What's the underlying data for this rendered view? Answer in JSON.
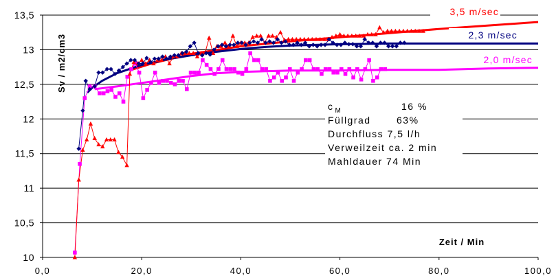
{
  "chart_data": {
    "type": "line",
    "title": "",
    "xlabel": "Zeit / Min",
    "ylabel": "Sv / m2/cm3",
    "xlim": [
      0,
      100
    ],
    "ylim": [
      10,
      13.5
    ],
    "x_ticks": [
      "0,0",
      "20,0",
      "40,0",
      "60,0",
      "80,0",
      "100,0"
    ],
    "y_ticks": [
      "10",
      "10,5",
      "11",
      "11,5",
      "12",
      "12,5",
      "13",
      "13,5"
    ],
    "grid": "horizontal",
    "series": [
      {
        "name": "3,5 m/sec",
        "color": "#ff0000",
        "marker": "triangle",
        "points": [
          [
            6.5,
            10.0
          ],
          [
            7.3,
            11.12
          ],
          [
            8.1,
            11.55
          ],
          [
            8.9,
            11.7
          ],
          [
            9.7,
            11.93
          ],
          [
            10.5,
            11.72
          ],
          [
            11.3,
            11.63
          ],
          [
            12.1,
            11.6
          ],
          [
            12.9,
            11.7
          ],
          [
            13.7,
            11.7
          ],
          [
            14.5,
            11.7
          ],
          [
            15.3,
            11.52
          ],
          [
            16.1,
            11.45
          ],
          [
            17.0,
            11.33
          ],
          [
            17.6,
            12.65
          ],
          [
            18.4,
            12.82
          ],
          [
            19.2,
            12.8
          ],
          [
            20.0,
            12.85
          ],
          [
            20.8,
            12.8
          ],
          [
            21.6,
            12.85
          ],
          [
            22.4,
            12.8
          ],
          [
            23.2,
            12.85
          ],
          [
            24.0,
            12.85
          ],
          [
            24.8,
            12.9
          ],
          [
            25.6,
            12.8
          ],
          [
            26.4,
            12.9
          ],
          [
            27.2,
            12.9
          ],
          [
            28.0,
            12.95
          ],
          [
            28.8,
            12.95
          ],
          [
            29.6,
            12.95
          ],
          [
            30.4,
            12.95
          ],
          [
            31.2,
            12.9
          ],
          [
            32.0,
            12.95
          ],
          [
            32.8,
            12.96
          ],
          [
            33.6,
            13.17
          ],
          [
            34.4,
            12.95
          ],
          [
            35.2,
            13.05
          ],
          [
            36.0,
            13.05
          ],
          [
            36.8,
            13.1
          ],
          [
            37.6,
            13.05
          ],
          [
            38.4,
            13.2
          ],
          [
            39.2,
            13.05
          ],
          [
            40.0,
            13.1
          ],
          [
            40.8,
            13.1
          ],
          [
            41.6,
            13.1
          ],
          [
            42.4,
            13.18
          ],
          [
            43.2,
            13.2
          ],
          [
            44.0,
            13.2
          ],
          [
            44.8,
            13.1
          ],
          [
            45.6,
            13.2
          ],
          [
            46.4,
            13.2
          ],
          [
            47.2,
            13.18
          ],
          [
            48.0,
            13.25
          ],
          [
            48.8,
            13.14
          ],
          [
            49.6,
            13.15
          ],
          [
            50.4,
            13.15
          ],
          [
            51.2,
            13.15
          ],
          [
            52.0,
            13.15
          ],
          [
            52.8,
            13.15
          ],
          [
            53.6,
            13.15
          ],
          [
            54.4,
            13.15
          ],
          [
            55.2,
            13.15
          ],
          [
            56.0,
            13.15
          ],
          [
            56.8,
            13.15
          ],
          [
            57.6,
            13.15
          ],
          [
            58.4,
            13.18
          ],
          [
            59.2,
            13.2
          ],
          [
            60.0,
            13.22
          ],
          [
            60.8,
            13.2
          ],
          [
            61.6,
            13.2
          ],
          [
            62.4,
            13.2
          ],
          [
            63.2,
            13.2
          ],
          [
            64.0,
            13.2
          ],
          [
            64.8,
            13.2
          ],
          [
            65.6,
            13.22
          ],
          [
            66.4,
            13.22
          ],
          [
            67.2,
            13.22
          ],
          [
            68.0,
            13.32
          ],
          [
            68.8,
            13.25
          ],
          [
            69.6,
            13.27
          ],
          [
            70.4,
            13.27
          ],
          [
            71.2,
            13.27
          ],
          [
            72.0,
            13.27
          ],
          [
            72.8,
            13.27
          ],
          [
            73.6,
            13.27
          ],
          [
            74.4,
            13.27
          ],
          [
            75.2,
            13.27
          ],
          [
            76.0,
            13.27
          ],
          [
            76.8,
            13.27
          ]
        ],
        "trend": [
          [
            17.5,
            12.7
          ],
          [
            22,
            12.8
          ],
          [
            30,
            12.94
          ],
          [
            40,
            13.05
          ],
          [
            50,
            13.12
          ],
          [
            60,
            13.18
          ],
          [
            70,
            13.24
          ],
          [
            80,
            13.3
          ],
          [
            90,
            13.35
          ],
          [
            100,
            13.4
          ]
        ]
      },
      {
        "name": "2,3 m/sec",
        "color": "#000080",
        "marker": "diamond",
        "points": [
          [
            7.3,
            11.57
          ],
          [
            8.1,
            12.12
          ],
          [
            8.7,
            12.55
          ],
          [
            9.5,
            12.43
          ],
          [
            10.5,
            12.47
          ],
          [
            11.3,
            12.67
          ],
          [
            12.1,
            12.67
          ],
          [
            13.0,
            12.72
          ],
          [
            13.8,
            12.72
          ],
          [
            14.6,
            12.65
          ],
          [
            15.4,
            12.7
          ],
          [
            16.2,
            12.75
          ],
          [
            17.0,
            12.8
          ],
          [
            17.8,
            12.85
          ],
          [
            18.6,
            12.85
          ],
          [
            19.4,
            12.8
          ],
          [
            20.2,
            12.8
          ],
          [
            21.0,
            12.88
          ],
          [
            21.8,
            12.82
          ],
          [
            22.6,
            12.87
          ],
          [
            23.4,
            12.87
          ],
          [
            24.2,
            12.9
          ],
          [
            25.0,
            12.87
          ],
          [
            25.8,
            12.9
          ],
          [
            26.6,
            12.92
          ],
          [
            27.4,
            12.92
          ],
          [
            28.2,
            12.95
          ],
          [
            29.0,
            12.97
          ],
          [
            29.8,
            13.05
          ],
          [
            30.6,
            13.1
          ],
          [
            31.4,
            12.95
          ],
          [
            32.2,
            12.92
          ],
          [
            33.0,
            12.95
          ],
          [
            33.8,
            12.93
          ],
          [
            34.6,
            13.0
          ],
          [
            35.4,
            13.05
          ],
          [
            36.2,
            13.07
          ],
          [
            37.0,
            13.05
          ],
          [
            37.8,
            13.07
          ],
          [
            38.6,
            13.07
          ],
          [
            39.4,
            13.1
          ],
          [
            40.2,
            13.1
          ],
          [
            41.0,
            13.07
          ],
          [
            41.8,
            13.1
          ],
          [
            42.6,
            13.12
          ],
          [
            43.4,
            13.1
          ],
          [
            44.2,
            13.15
          ],
          [
            45.0,
            13.1
          ],
          [
            45.8,
            13.12
          ],
          [
            46.6,
            13.1
          ],
          [
            47.4,
            13.15
          ],
          [
            48.2,
            13.1
          ],
          [
            49.0,
            13.12
          ],
          [
            49.8,
            13.07
          ],
          [
            50.6,
            13.07
          ],
          [
            51.4,
            13.1
          ],
          [
            52.2,
            13.07
          ],
          [
            53.0,
            13.1
          ],
          [
            53.8,
            13.05
          ],
          [
            54.6,
            13.07
          ],
          [
            55.4,
            13.05
          ],
          [
            56.2,
            13.07
          ],
          [
            57.0,
            13.07
          ],
          [
            57.8,
            13.15
          ],
          [
            58.6,
            13.1
          ],
          [
            59.4,
            13.07
          ],
          [
            60.2,
            13.07
          ],
          [
            61.0,
            13.1
          ],
          [
            61.8,
            13.08
          ],
          [
            62.6,
            13.08
          ],
          [
            63.4,
            13.05
          ],
          [
            64.2,
            13.05
          ],
          [
            65.0,
            13.15
          ],
          [
            65.8,
            13.1
          ],
          [
            66.6,
            13.1
          ],
          [
            67.4,
            13.05
          ],
          [
            68.2,
            13.1
          ],
          [
            69.0,
            13.1
          ],
          [
            69.8,
            13.05
          ],
          [
            70.6,
            13.05
          ],
          [
            71.4,
            13.05
          ],
          [
            72.2,
            13.1
          ],
          [
            73.0,
            13.1
          ]
        ],
        "trend": [
          [
            9.0,
            12.38
          ],
          [
            10,
            12.45
          ],
          [
            12,
            12.55
          ],
          [
            15,
            12.66
          ],
          [
            20,
            12.78
          ],
          [
            25,
            12.86
          ],
          [
            30,
            12.92
          ],
          [
            35,
            12.97
          ],
          [
            40,
            13.01
          ],
          [
            45,
            13.04
          ],
          [
            50,
            13.06
          ],
          [
            55,
            13.07
          ],
          [
            60,
            13.08
          ],
          [
            70,
            13.09
          ],
          [
            80,
            13.09
          ],
          [
            100,
            13.09
          ]
        ]
      },
      {
        "name": "2,0 m/sec",
        "color": "#ff00ff",
        "marker": "square",
        "points": [
          [
            6.5,
            10.07
          ],
          [
            7.5,
            11.35
          ],
          [
            8.5,
            12.3
          ],
          [
            9.5,
            12.47
          ],
          [
            10.5,
            12.47
          ],
          [
            11.5,
            12.37
          ],
          [
            12.3,
            12.37
          ],
          [
            13.1,
            12.4
          ],
          [
            13.9,
            12.42
          ],
          [
            14.7,
            12.32
          ],
          [
            15.5,
            12.37
          ],
          [
            16.3,
            12.25
          ],
          [
            17.1,
            12.61
          ],
          [
            17.9,
            12.72
          ],
          [
            18.7,
            12.8
          ],
          [
            19.5,
            12.67
          ],
          [
            20.3,
            12.3
          ],
          [
            21.1,
            12.42
          ],
          [
            21.9,
            12.52
          ],
          [
            22.7,
            12.67
          ],
          [
            23.5,
            12.52
          ],
          [
            24.3,
            12.55
          ],
          [
            25.1,
            12.55
          ],
          [
            25.9,
            12.52
          ],
          [
            26.7,
            12.5
          ],
          [
            27.5,
            12.55
          ],
          [
            28.3,
            12.55
          ],
          [
            29.1,
            12.43
          ],
          [
            29.9,
            12.67
          ],
          [
            30.7,
            12.67
          ],
          [
            31.5,
            12.67
          ],
          [
            32.3,
            12.85
          ],
          [
            33.1,
            12.78
          ],
          [
            33.9,
            12.72
          ],
          [
            34.7,
            12.65
          ],
          [
            35.5,
            12.72
          ],
          [
            36.3,
            12.85
          ],
          [
            37.1,
            12.72
          ],
          [
            37.9,
            12.72
          ],
          [
            38.7,
            12.72
          ],
          [
            39.5,
            12.67
          ],
          [
            40.3,
            12.65
          ],
          [
            41.1,
            12.72
          ],
          [
            41.9,
            12.95
          ],
          [
            42.7,
            12.85
          ],
          [
            43.5,
            12.85
          ],
          [
            44.3,
            12.72
          ],
          [
            45.1,
            12.72
          ],
          [
            45.9,
            12.55
          ],
          [
            46.7,
            12.6
          ],
          [
            47.5,
            12.67
          ],
          [
            48.3,
            12.55
          ],
          [
            49.1,
            12.6
          ],
          [
            49.9,
            12.72
          ],
          [
            50.7,
            12.55
          ],
          [
            51.5,
            12.67
          ],
          [
            52.3,
            12.72
          ],
          [
            53.1,
            12.85
          ],
          [
            53.9,
            12.85
          ],
          [
            54.7,
            12.72
          ],
          [
            55.5,
            12.72
          ],
          [
            56.3,
            12.65
          ],
          [
            57.1,
            12.72
          ],
          [
            57.9,
            12.72
          ],
          [
            58.7,
            12.67
          ],
          [
            59.5,
            12.67
          ],
          [
            60.3,
            12.72
          ],
          [
            61.1,
            12.65
          ],
          [
            61.9,
            12.72
          ],
          [
            62.7,
            12.6
          ],
          [
            63.5,
            12.72
          ],
          [
            64.3,
            12.57
          ],
          [
            65.1,
            12.72
          ],
          [
            65.9,
            12.85
          ],
          [
            66.7,
            12.55
          ],
          [
            67.5,
            12.6
          ],
          [
            68.3,
            12.72
          ],
          [
            69.1,
            12.72
          ]
        ],
        "trend": [
          [
            10.5,
            12.43
          ],
          [
            15,
            12.47
          ],
          [
            20,
            12.52
          ],
          [
            25,
            12.57
          ],
          [
            30,
            12.62
          ],
          [
            35,
            12.66
          ],
          [
            40,
            12.68
          ],
          [
            50,
            12.7
          ],
          [
            60,
            12.7
          ],
          [
            70,
            12.71
          ],
          [
            80,
            12.71
          ],
          [
            90,
            12.73
          ],
          [
            100,
            12.74
          ]
        ]
      }
    ],
    "annotations": [
      {
        "row": 1,
        "parts": [
          {
            "text": "c",
            "sub": "M"
          },
          {
            "text": "16 %",
            "offset": 107
          }
        ]
      },
      {
        "row": 2,
        "parts": [
          {
            "text": "Füllgrad"
          },
          {
            "text": "63%",
            "offset": 100
          }
        ]
      },
      {
        "row": 3,
        "parts": [
          {
            "text": "Durchfluss 7,5 l/h"
          }
        ]
      },
      {
        "row": 4,
        "parts": [
          {
            "text": "Verweilzeit ca. 2 min"
          }
        ]
      },
      {
        "row": 5,
        "parts": [
          {
            "text": "Mahldauer 74 Min"
          }
        ]
      }
    ]
  }
}
